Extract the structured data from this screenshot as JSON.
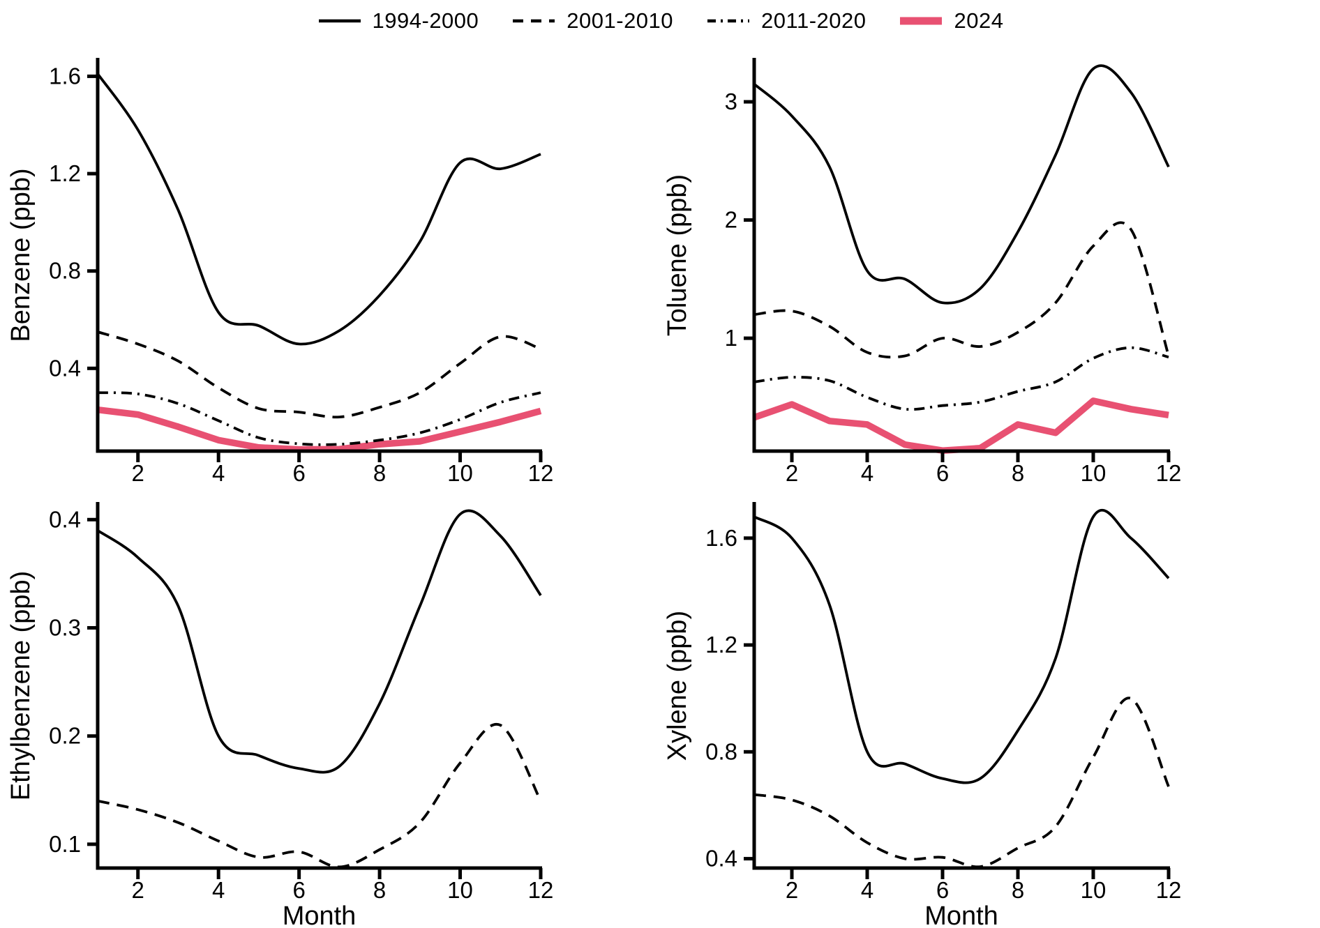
{
  "figure": {
    "legend": [
      {
        "label": "1994-2000",
        "style": "solid",
        "color": "#000000"
      },
      {
        "label": "2001-2010",
        "style": "dashed",
        "color": "#000000"
      },
      {
        "label": "2011-2020",
        "style": "dashdot",
        "color": "#000000"
      },
      {
        "label": "2024",
        "style": "thick",
        "color": "#E85172"
      }
    ],
    "xlabel": "Month",
    "accent_color": "#E85172",
    "line_color": "#000000"
  },
  "chart_data": [
    {
      "type": "line",
      "ylabel": "Benzene (ppb)",
      "x": [
        1,
        2,
        3,
        4,
        5,
        6,
        7,
        8,
        9,
        10,
        11,
        12
      ],
      "xticks": [
        2,
        4,
        6,
        8,
        10,
        12
      ],
      "yticks": [
        0.4,
        0.8,
        1.2,
        1.6
      ],
      "ytick_labels": [
        "0.4",
        "0.8",
        "1.2",
        "1.6"
      ],
      "ylim": [
        0.06,
        1.67
      ],
      "xlim": [
        1,
        12
      ],
      "show_xlabel": false,
      "series": [
        {
          "name": "1994-2000",
          "style": "solid",
          "values": [
            1.61,
            1.38,
            1.05,
            0.63,
            0.575,
            0.5,
            0.555,
            0.7,
            0.92,
            1.245,
            1.22,
            1.28
          ]
        },
        {
          "name": "2001-2010",
          "style": "dashed",
          "values": [
            0.55,
            0.5,
            0.43,
            0.32,
            0.235,
            0.22,
            0.2,
            0.24,
            0.3,
            0.42,
            0.53,
            0.48
          ]
        },
        {
          "name": "2011-2020",
          "style": "dashdot",
          "values": [
            0.3,
            0.295,
            0.255,
            0.185,
            0.115,
            0.09,
            0.088,
            0.105,
            0.135,
            0.19,
            0.26,
            0.3
          ]
        },
        {
          "name": "2024",
          "style": "thick",
          "values": [
            0.23,
            0.21,
            0.16,
            0.105,
            0.075,
            0.067,
            0.068,
            0.088,
            0.1,
            0.14,
            0.18,
            0.225
          ]
        }
      ]
    },
    {
      "type": "line",
      "ylabel": "Toluene (ppb)",
      "x": [
        1,
        2,
        3,
        4,
        5,
        6,
        7,
        8,
        9,
        10,
        11,
        12
      ],
      "xticks": [
        2,
        4,
        6,
        8,
        10,
        12
      ],
      "yticks": [
        1,
        2,
        3
      ],
      "ytick_labels": [
        "1",
        "2",
        "3"
      ],
      "ylim": [
        0.045,
        3.36
      ],
      "xlim": [
        1,
        12
      ],
      "show_xlabel": false,
      "series": [
        {
          "name": "1994-2000",
          "style": "solid",
          "values": [
            3.15,
            2.88,
            2.45,
            1.57,
            1.5,
            1.3,
            1.42,
            1.9,
            2.55,
            3.28,
            3.08,
            2.45
          ]
        },
        {
          "name": "2001-2010",
          "style": "dashed",
          "values": [
            1.2,
            1.23,
            1.1,
            0.88,
            0.85,
            1.0,
            0.93,
            1.05,
            1.3,
            1.78,
            1.92,
            0.85
          ]
        },
        {
          "name": "2011-2020",
          "style": "dashdot",
          "values": [
            0.63,
            0.67,
            0.64,
            0.5,
            0.4,
            0.43,
            0.46,
            0.55,
            0.63,
            0.83,
            0.92,
            0.84
          ]
        },
        {
          "name": "2024",
          "style": "thick",
          "values": [
            0.33,
            0.44,
            0.3,
            0.27,
            0.1,
            0.05,
            0.07,
            0.27,
            0.2,
            0.47,
            0.4,
            0.35
          ]
        }
      ]
    },
    {
      "type": "line",
      "ylabel": "Ethylbenzene (ppb)",
      "x": [
        1,
        2,
        3,
        4,
        5,
        6,
        7,
        8,
        9,
        10,
        11,
        12
      ],
      "xticks": [
        2,
        4,
        6,
        8,
        10,
        12
      ],
      "yticks": [
        0.1,
        0.2,
        0.3,
        0.4
      ],
      "ytick_labels": [
        "0.1",
        "0.2",
        "0.3",
        "0.4"
      ],
      "ylim": [
        0.078,
        0.415
      ],
      "xlim": [
        1,
        12
      ],
      "show_xlabel": true,
      "series": [
        {
          "name": "1994-2000",
          "style": "solid",
          "values": [
            0.39,
            0.365,
            0.32,
            0.2,
            0.182,
            0.17,
            0.172,
            0.23,
            0.32,
            0.405,
            0.385,
            0.33
          ]
        },
        {
          "name": "2001-2010",
          "style": "dashed",
          "values": [
            0.14,
            0.132,
            0.12,
            0.103,
            0.088,
            0.093,
            0.079,
            0.095,
            0.12,
            0.175,
            0.21,
            0.14
          ]
        }
      ]
    },
    {
      "type": "line",
      "ylabel": "Xylene (ppb)",
      "x": [
        1,
        2,
        3,
        4,
        5,
        6,
        7,
        8,
        9,
        10,
        11,
        12
      ],
      "xticks": [
        2,
        4,
        6,
        8,
        10,
        12
      ],
      "yticks": [
        0.4,
        0.8,
        1.2,
        1.6
      ],
      "ytick_labels": [
        "0.4",
        "0.8",
        "1.2",
        "1.6"
      ],
      "ylim": [
        0.365,
        1.73
      ],
      "xlim": [
        1,
        12
      ],
      "show_xlabel": true,
      "series": [
        {
          "name": "1994-2000",
          "style": "solid",
          "values": [
            1.68,
            1.6,
            1.35,
            0.8,
            0.755,
            0.7,
            0.7,
            0.88,
            1.15,
            1.68,
            1.6,
            1.45
          ]
        },
        {
          "name": "2001-2010",
          "style": "dashed",
          "values": [
            0.64,
            0.62,
            0.56,
            0.46,
            0.4,
            0.405,
            0.37,
            0.44,
            0.52,
            0.78,
            1.0,
            0.67
          ]
        }
      ]
    }
  ]
}
